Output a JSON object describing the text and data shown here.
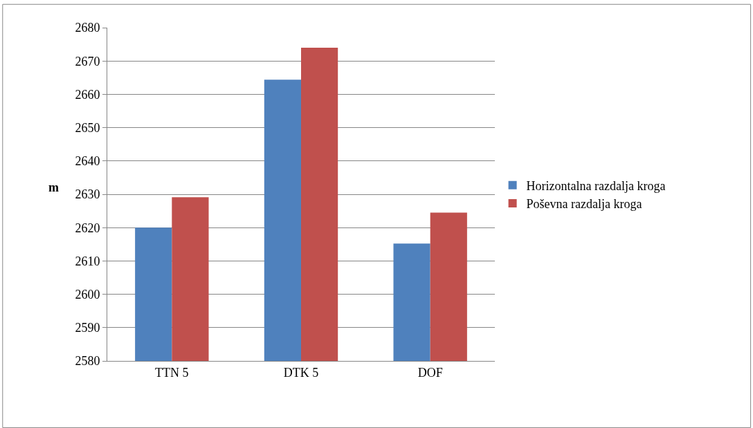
{
  "chart_data": {
    "type": "bar",
    "ylabel": "m",
    "categories": [
      "TTN 5",
      "DTK 5",
      "DOF"
    ],
    "series": [
      {
        "name": "Horizontalna razdalja kroga",
        "color": "#4f81bd",
        "values": [
          2620.0,
          2664.4,
          2615.2
        ]
      },
      {
        "name": "Poševna razdalja kroga",
        "color": "#c0504d",
        "values": [
          2629.1,
          2674.0,
          2624.5
        ]
      }
    ],
    "ylim": [
      2580,
      2680
    ],
    "yticks": [
      2580,
      2590,
      2600,
      2610,
      2620,
      2630,
      2640,
      2650,
      2660,
      2670,
      2680
    ],
    "grid": "y",
    "legend": "right"
  }
}
